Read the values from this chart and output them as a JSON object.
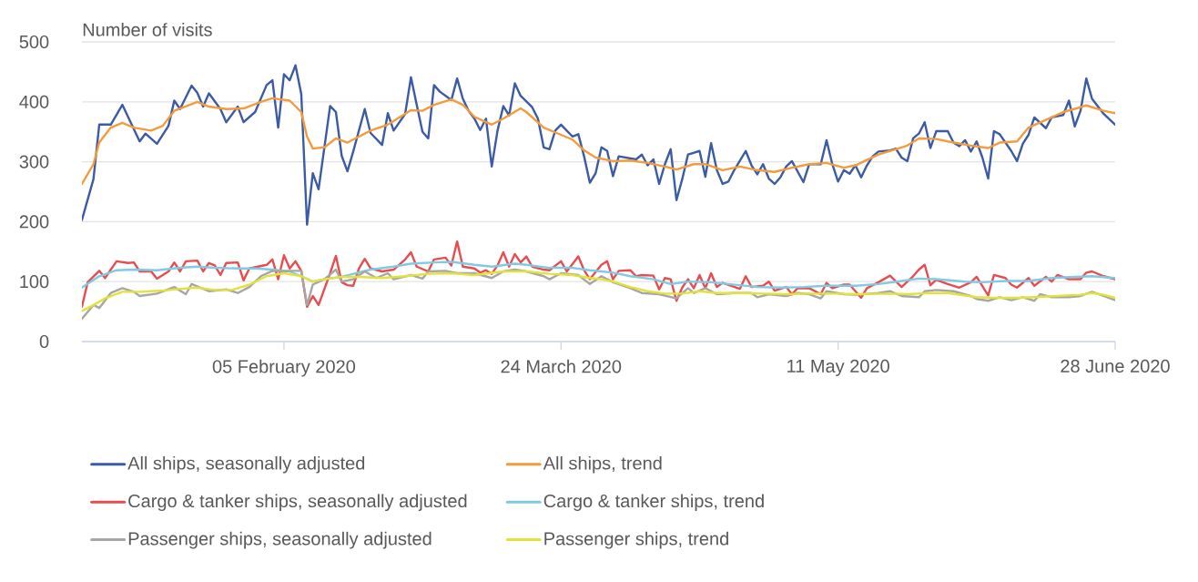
{
  "chart_data": {
    "type": "line",
    "ylabel": "Number of visits",
    "xlim": [
      "2020-01-01",
      "2020-06-28"
    ],
    "xticks": [
      {
        "value": "2020-02-05",
        "label": "05 February 2020"
      },
      {
        "value": "2020-03-24",
        "label": "24 March 2020"
      },
      {
        "value": "2020-05-11",
        "label": "11 May 2020"
      },
      {
        "value": "2020-06-28",
        "label": "28 June 2020"
      }
    ],
    "ylim": [
      0,
      500
    ],
    "yticks": [
      0,
      100,
      200,
      300,
      400,
      500
    ],
    "grid": "y",
    "legend": "bottom",
    "series": [
      {
        "name": "All ships, seasonally adjusted",
        "color": "#3b5ba5",
        "x": [
          "2020-01-01",
          "2020-01-03",
          "2020-01-04",
          "2020-01-06",
          "2020-01-08",
          "2020-01-11",
          "2020-01-12",
          "2020-01-14",
          "2020-01-16",
          "2020-01-17",
          "2020-01-18",
          "2020-01-20",
          "2020-01-21",
          "2020-01-22",
          "2020-01-23",
          "2020-01-25",
          "2020-01-26",
          "2020-01-28",
          "2020-01-29",
          "2020-01-31",
          "2020-02-02",
          "2020-02-03",
          "2020-02-04",
          "2020-02-05",
          "2020-02-06",
          "2020-02-07",
          "2020-02-08",
          "2020-02-09",
          "2020-02-10",
          "2020-02-11",
          "2020-02-13",
          "2020-02-14",
          "2020-02-15",
          "2020-02-16",
          "2020-02-17",
          "2020-02-19",
          "2020-02-20",
          "2020-02-22",
          "2020-02-23",
          "2020-02-24",
          "2020-02-26",
          "2020-02-27",
          "2020-02-28",
          "2020-02-29",
          "2020-03-01",
          "2020-03-02",
          "2020-03-03",
          "2020-03-05",
          "2020-03-06",
          "2020-03-07",
          "2020-03-08",
          "2020-03-09",
          "2020-03-10",
          "2020-03-11",
          "2020-03-12",
          "2020-03-13",
          "2020-03-14",
          "2020-03-15",
          "2020-03-16",
          "2020-03-17",
          "2020-03-19",
          "2020-03-20",
          "2020-03-21",
          "2020-03-22",
          "2020-03-23",
          "2020-03-24",
          "2020-03-26",
          "2020-03-27",
          "2020-03-28",
          "2020-03-29",
          "2020-03-30",
          "2020-03-31",
          "2020-04-01",
          "2020-04-02",
          "2020-04-03",
          "2020-04-06",
          "2020-04-07",
          "2020-04-08",
          "2020-04-09",
          "2020-04-10",
          "2020-04-11",
          "2020-04-12",
          "2020-04-13",
          "2020-04-14",
          "2020-04-15",
          "2020-04-17",
          "2020-04-18",
          "2020-04-19",
          "2020-04-20",
          "2020-04-21",
          "2020-04-22",
          "2020-04-23",
          "2020-04-25",
          "2020-04-26",
          "2020-04-27",
          "2020-04-28",
          "2020-04-29",
          "2020-04-30",
          "2020-05-01",
          "2020-05-02",
          "2020-05-03",
          "2020-05-05",
          "2020-05-06",
          "2020-05-08",
          "2020-05-09",
          "2020-05-10",
          "2020-05-11",
          "2020-05-12",
          "2020-05-13",
          "2020-05-14",
          "2020-05-15",
          "2020-05-16",
          "2020-05-17",
          "2020-05-18",
          "2020-05-20",
          "2020-05-21",
          "2020-05-22",
          "2020-05-23",
          "2020-05-24",
          "2020-05-25",
          "2020-05-26",
          "2020-05-27",
          "2020-05-28",
          "2020-05-30",
          "2020-05-31",
          "2020-06-01",
          "2020-06-02",
          "2020-06-03",
          "2020-06-04",
          "2020-06-05",
          "2020-06-06",
          "2020-06-07",
          "2020-06-08",
          "2020-06-10",
          "2020-06-11",
          "2020-06-12",
          "2020-06-13",
          "2020-06-14",
          "2020-06-16",
          "2020-06-17",
          "2020-06-19",
          "2020-06-20",
          "2020-06-21",
          "2020-06-22",
          "2020-06-23",
          "2020-06-24",
          "2020-06-26",
          "2020-06-28"
        ],
        "values": [
          203,
          271,
          362,
          362,
          395,
          334,
          347,
          330,
          360,
          402,
          388,
          427,
          415,
          392,
          414,
          388,
          366,
          392,
          366,
          383,
          428,
          436,
          357,
          446,
          436,
          461,
          413,
          195,
          281,
          254,
          393,
          383,
          310,
          284,
          317,
          388,
          348,
          328,
          381,
          352,
          380,
          441,
          395,
          350,
          339,
          428,
          417,
          403,
          439,
          405,
          385,
          372,
          353,
          372,
          292,
          352,
          393,
          377,
          431,
          410,
          391,
          372,
          324,
          321,
          352,
          362,
          342,
          346,
          309,
          265,
          281,
          324,
          318,
          276,
          309,
          304,
          312,
          294,
          304,
          263,
          296,
          321,
          236,
          271,
          312,
          318,
          275,
          331,
          286,
          263,
          267,
          286,
          318,
          294,
          279,
          296,
          272,
          263,
          274,
          292,
          301,
          266,
          296,
          296,
          336,
          296,
          267,
          286,
          280,
          294,
          274,
          294,
          309,
          317,
          319,
          322,
          307,
          301,
          339,
          347,
          366,
          323,
          351,
          351,
          332,
          326,
          336,
          317,
          334,
          307,
          272,
          351,
          346,
          318,
          301,
          330,
          345,
          374,
          356,
          374,
          378,
          402,
          359,
          385,
          439,
          405,
          380,
          362
        ]
      },
      {
        "name": "All ships, trend",
        "color": "#f39c3c",
        "x": [
          "2020-01-01",
          "2020-01-03",
          "2020-01-04",
          "2020-01-06",
          "2020-01-08",
          "2020-01-10",
          "2020-01-13",
          "2020-01-15",
          "2020-01-17",
          "2020-01-21",
          "2020-01-23",
          "2020-01-26",
          "2020-01-29",
          "2020-02-01",
          "2020-02-03",
          "2020-02-06",
          "2020-02-08",
          "2020-02-09",
          "2020-02-10",
          "2020-02-12",
          "2020-02-14",
          "2020-02-16",
          "2020-02-20",
          "2020-02-23",
          "2020-02-27",
          "2020-02-29",
          "2020-03-02",
          "2020-03-05",
          "2020-03-07",
          "2020-03-09",
          "2020-03-12",
          "2020-03-14",
          "2020-03-17",
          "2020-03-18",
          "2020-03-21",
          "2020-03-24",
          "2020-03-26",
          "2020-03-28",
          "2020-03-30",
          "2020-04-02",
          "2020-04-05",
          "2020-04-08",
          "2020-04-11",
          "2020-04-13",
          "2020-04-16",
          "2020-04-18",
          "2020-04-21",
          "2020-04-24",
          "2020-04-27",
          "2020-04-30",
          "2020-05-03",
          "2020-05-06",
          "2020-05-09",
          "2020-05-12",
          "2020-05-14",
          "2020-05-18",
          "2020-05-21",
          "2020-05-23",
          "2020-05-25",
          "2020-05-28",
          "2020-05-30",
          "2020-06-03",
          "2020-06-06",
          "2020-06-08",
          "2020-06-11",
          "2020-06-13",
          "2020-06-16",
          "2020-06-19",
          "2020-06-22",
          "2020-06-23",
          "2020-06-26",
          "2020-06-28"
        ],
        "values": [
          263,
          296,
          332,
          357,
          365,
          357,
          352,
          360,
          385,
          400,
          392,
          388,
          389,
          400,
          406,
          402,
          383,
          342,
          322,
          324,
          339,
          332,
          352,
          362,
          386,
          385,
          395,
          404,
          395,
          375,
          362,
          372,
          389,
          383,
          357,
          345,
          337,
          319,
          307,
          301,
          302,
          298,
          292,
          287,
          296,
          296,
          286,
          292,
          286,
          283,
          290,
          296,
          298,
          290,
          294,
          312,
          321,
          327,
          339,
          338,
          334,
          327,
          323,
          332,
          334,
          357,
          370,
          383,
          391,
          394,
          385,
          381
        ]
      },
      {
        "name": "Cargo & tanker ships, seasonally adjusted",
        "color": "#e74c4f",
        "x": [
          "2020-01-01",
          "2020-01-02",
          "2020-01-04",
          "2020-01-05",
          "2020-01-07",
          "2020-01-09",
          "2020-01-10",
          "2020-01-11",
          "2020-01-13",
          "2020-01-14",
          "2020-01-16",
          "2020-01-17",
          "2020-01-18",
          "2020-01-19",
          "2020-01-21",
          "2020-01-22",
          "2020-01-23",
          "2020-01-24",
          "2020-01-25",
          "2020-01-26",
          "2020-01-28",
          "2020-01-29",
          "2020-01-30",
          "2020-02-02",
          "2020-02-03",
          "2020-02-04",
          "2020-02-05",
          "2020-02-06",
          "2020-02-07",
          "2020-02-08",
          "2020-02-09",
          "2020-02-10",
          "2020-02-11",
          "2020-02-13",
          "2020-02-14",
          "2020-02-15",
          "2020-02-16",
          "2020-02-17",
          "2020-02-18",
          "2020-02-19",
          "2020-02-20",
          "2020-02-22",
          "2020-02-24",
          "2020-02-26",
          "2020-02-27",
          "2020-02-28",
          "2020-03-01",
          "2020-03-02",
          "2020-03-04",
          "2020-03-05",
          "2020-03-06",
          "2020-03-07",
          "2020-03-09",
          "2020-03-10",
          "2020-03-11",
          "2020-03-12",
          "2020-03-13",
          "2020-03-14",
          "2020-03-15",
          "2020-03-16",
          "2020-03-17",
          "2020-03-18",
          "2020-03-19",
          "2020-03-21",
          "2020-03-22",
          "2020-03-24",
          "2020-03-25",
          "2020-03-27",
          "2020-03-28",
          "2020-03-29",
          "2020-03-31",
          "2020-04-01",
          "2020-04-02",
          "2020-04-03",
          "2020-04-05",
          "2020-04-06",
          "2020-04-07",
          "2020-04-09",
          "2020-04-10",
          "2020-04-11",
          "2020-04-12",
          "2020-04-13",
          "2020-04-14",
          "2020-04-15",
          "2020-04-16",
          "2020-04-17",
          "2020-04-18",
          "2020-04-19",
          "2020-04-20",
          "2020-04-21",
          "2020-04-24",
          "2020-04-25",
          "2020-04-26",
          "2020-04-28",
          "2020-04-29",
          "2020-04-30",
          "2020-05-02",
          "2020-05-03",
          "2020-05-04",
          "2020-05-06",
          "2020-05-08",
          "2020-05-09",
          "2020-05-10",
          "2020-05-12",
          "2020-05-13",
          "2020-05-15",
          "2020-05-16",
          "2020-05-18",
          "2020-05-20",
          "2020-05-22",
          "2020-05-24",
          "2020-05-25",
          "2020-05-26",
          "2020-05-27",
          "2020-05-28",
          "2020-05-30",
          "2020-06-01",
          "2020-06-03",
          "2020-06-04",
          "2020-06-06",
          "2020-06-07",
          "2020-06-09",
          "2020-06-10",
          "2020-06-11",
          "2020-06-13",
          "2020-06-14",
          "2020-06-16",
          "2020-06-17",
          "2020-06-18",
          "2020-06-20",
          "2020-06-22",
          "2020-06-23",
          "2020-06-24",
          "2020-06-26",
          "2020-06-28"
        ],
        "values": [
          58,
          99,
          118,
          106,
          134,
          131,
          132,
          117,
          117,
          105,
          117,
          132,
          117,
          134,
          135,
          117,
          131,
          127,
          111,
          131,
          132,
          102,
          122,
          128,
          137,
          104,
          144,
          122,
          134,
          118,
          58,
          76,
          61,
          114,
          143,
          99,
          94,
          93,
          122,
          138,
          122,
          117,
          120,
          137,
          149,
          125,
          117,
          137,
          140,
          127,
          167,
          125,
          122,
          115,
          119,
          113,
          127,
          149,
          125,
          146,
          132,
          142,
          125,
          120,
          119,
          134,
          117,
          142,
          119,
          104,
          128,
          134,
          104,
          118,
          119,
          109,
          111,
          110,
          87,
          106,
          104,
          68,
          90,
          104,
          89,
          111,
          89,
          114,
          91,
          98,
          88,
          109,
          91,
          93,
          100,
          85,
          91,
          79,
          89,
          89,
          79,
          98,
          89,
          95,
          95,
          73,
          89,
          99,
          110,
          91,
          109,
          120,
          128,
          94,
          103,
          96,
          90,
          99,
          108,
          77,
          111,
          106,
          95,
          90,
          106,
          93,
          108,
          100,
          111,
          104,
          104,
          115,
          117,
          109,
          104
        ]
      },
      {
        "name": "Cargo & tanker ships, trend",
        "color": "#7fcbe3",
        "x": [
          "2020-01-01",
          "2020-01-04",
          "2020-01-07",
          "2020-01-10",
          "2020-01-14",
          "2020-01-18",
          "2020-01-21",
          "2020-01-24",
          "2020-01-28",
          "2020-01-31",
          "2020-02-03",
          "2020-02-06",
          "2020-02-08",
          "2020-02-10",
          "2020-02-12",
          "2020-02-15",
          "2020-02-20",
          "2020-02-24",
          "2020-02-27",
          "2020-03-02",
          "2020-03-05",
          "2020-03-09",
          "2020-03-12",
          "2020-03-16",
          "2020-03-18",
          "2020-03-22",
          "2020-03-26",
          "2020-03-29",
          "2020-03-31",
          "2020-04-02",
          "2020-04-05",
          "2020-04-09",
          "2020-04-12",
          "2020-04-15",
          "2020-04-19",
          "2020-04-23",
          "2020-04-27",
          "2020-05-01",
          "2020-05-05",
          "2020-05-09",
          "2020-05-14",
          "2020-05-18",
          "2020-05-22",
          "2020-05-25",
          "2020-05-28",
          "2020-06-02",
          "2020-06-05",
          "2020-06-09",
          "2020-06-13",
          "2020-06-17",
          "2020-06-21",
          "2020-06-24",
          "2020-06-28"
        ],
        "values": [
          90,
          109,
          119,
          120,
          119,
          123,
          125,
          123,
          122,
          122,
          120,
          117,
          109,
          100,
          104,
          108,
          120,
          125,
          130,
          132,
          133,
          128,
          125,
          130,
          128,
          123,
          123,
          119,
          117,
          115,
          109,
          104,
          96,
          100,
          99,
          95,
          91,
          90,
          91,
          93,
          93,
          96,
          101,
          105,
          104,
          100,
          99,
          101,
          101,
          106,
          108,
          109,
          106
        ]
      },
      {
        "name": "Passenger ships, seasonally adjusted",
        "color": "#a6a6a6",
        "x": [
          "2020-01-01",
          "2020-01-03",
          "2020-01-04",
          "2020-01-06",
          "2020-01-08",
          "2020-01-10",
          "2020-01-11",
          "2020-01-14",
          "2020-01-17",
          "2020-01-19",
          "2020-01-20",
          "2020-01-23",
          "2020-01-26",
          "2020-01-28",
          "2020-01-30",
          "2020-02-01",
          "2020-02-03",
          "2020-02-05",
          "2020-02-06",
          "2020-02-08",
          "2020-02-09",
          "2020-02-10",
          "2020-02-12",
          "2020-02-14",
          "2020-02-15",
          "2020-02-17",
          "2020-02-19",
          "2020-02-21",
          "2020-02-23",
          "2020-02-24",
          "2020-02-27",
          "2020-02-29",
          "2020-03-01",
          "2020-03-04",
          "2020-03-06",
          "2020-03-09",
          "2020-03-12",
          "2020-03-14",
          "2020-03-16",
          "2020-03-18",
          "2020-03-21",
          "2020-03-22",
          "2020-03-24",
          "2020-03-27",
          "2020-03-29",
          "2020-03-31",
          "2020-04-02",
          "2020-04-05",
          "2020-04-07",
          "2020-04-10",
          "2020-04-13",
          "2020-04-15",
          "2020-04-16",
          "2020-04-18",
          "2020-04-20",
          "2020-04-23",
          "2020-04-26",
          "2020-04-27",
          "2020-04-29",
          "2020-05-02",
          "2020-05-04",
          "2020-05-06",
          "2020-05-08",
          "2020-05-09",
          "2020-05-12",
          "2020-05-14",
          "2020-05-18",
          "2020-05-20",
          "2020-05-22",
          "2020-05-25",
          "2020-05-26",
          "2020-05-28",
          "2020-05-31",
          "2020-06-03",
          "2020-06-04",
          "2020-06-06",
          "2020-06-08",
          "2020-06-10",
          "2020-06-12",
          "2020-06-14",
          "2020-06-15",
          "2020-06-17",
          "2020-06-20",
          "2020-06-22",
          "2020-06-24",
          "2020-06-26",
          "2020-06-28"
        ],
        "values": [
          38,
          61,
          56,
          81,
          89,
          83,
          76,
          80,
          91,
          79,
          96,
          84,
          87,
          81,
          91,
          109,
          118,
          117,
          118,
          118,
          61,
          95,
          104,
          120,
          100,
          104,
          117,
          106,
          114,
          104,
          111,
          105,
          117,
          118,
          114,
          114,
          106,
          117,
          120,
          117,
          109,
          104,
          114,
          111,
          96,
          109,
          99,
          89,
          81,
          79,
          72,
          89,
          81,
          89,
          79,
          81,
          81,
          74,
          79,
          76,
          81,
          79,
          72,
          84,
          79,
          78,
          81,
          84,
          76,
          74,
          84,
          86,
          84,
          76,
          71,
          68,
          74,
          69,
          74,
          68,
          79,
          74,
          74,
          76,
          83,
          76,
          69
        ]
      },
      {
        "name": "Passenger ships, trend",
        "color": "#e2e23a",
        "x": [
          "2020-01-01",
          "2020-01-03",
          "2020-01-05",
          "2020-01-08",
          "2020-01-11",
          "2020-01-15",
          "2020-01-18",
          "2020-01-21",
          "2020-01-24",
          "2020-01-27",
          "2020-01-30",
          "2020-02-02",
          "2020-02-05",
          "2020-02-08",
          "2020-02-10",
          "2020-02-12",
          "2020-02-15",
          "2020-02-18",
          "2020-02-22",
          "2020-02-26",
          "2020-03-01",
          "2020-03-05",
          "2020-03-09",
          "2020-03-14",
          "2020-03-18",
          "2020-03-22",
          "2020-03-26",
          "2020-03-29",
          "2020-03-31",
          "2020-04-02",
          "2020-04-05",
          "2020-04-08",
          "2020-04-11",
          "2020-04-14",
          "2020-04-17",
          "2020-04-20",
          "2020-04-24",
          "2020-04-28",
          "2020-05-02",
          "2020-05-06",
          "2020-05-11",
          "2020-05-14",
          "2020-05-20",
          "2020-05-23",
          "2020-05-27",
          "2020-05-30",
          "2020-06-04",
          "2020-06-07",
          "2020-06-11",
          "2020-06-14",
          "2020-06-18",
          "2020-06-22",
          "2020-06-24",
          "2020-06-26",
          "2020-06-28"
        ],
        "values": [
          51,
          61,
          72,
          83,
          83,
          85,
          88,
          90,
          86,
          86,
          95,
          109,
          114,
          109,
          100,
          104,
          108,
          108,
          106,
          109,
          113,
          114,
          111,
          117,
          117,
          113,
          111,
          106,
          104,
          100,
          91,
          84,
          80,
          80,
          84,
          81,
          81,
          80,
          79,
          80,
          80,
          79,
          80,
          79,
          81,
          81,
          74,
          73,
          73,
          74,
          76,
          78,
          81,
          78,
          73
        ]
      }
    ]
  }
}
